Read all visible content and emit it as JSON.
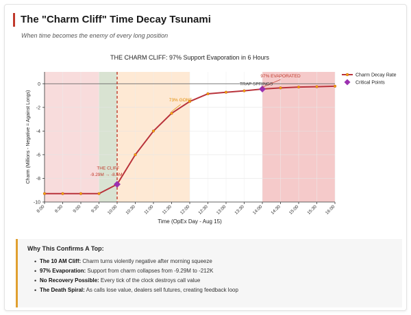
{
  "page": {
    "title": "The \"Charm Cliff\" Time Decay Tsunami",
    "subtitle": "When time becomes the enemy of every long position"
  },
  "chart_data": {
    "type": "line",
    "title": "THE CHARM CLIFF: 97% Support Evaporation in 6 Hours",
    "xlabel": "Time (OpEx Day - Aug 15)",
    "ylabel": "Charm (Millions - Negative = Against Longs)",
    "categories": [
      "8:00",
      "8:30",
      "9:00",
      "9:30",
      "10:00",
      "10:30",
      "11:00",
      "11:30",
      "12:00",
      "12:30",
      "13:00",
      "13:30",
      "14:00",
      "14:30",
      "15:00",
      "15:30",
      "16:00"
    ],
    "ylim": [
      -10,
      1
    ],
    "yticks": [
      0,
      -2,
      -4,
      -6,
      -8,
      -10
    ],
    "series": [
      {
        "name": "Charm Decay Rate",
        "color": "#b8323a",
        "marker_color": "#f0a800",
        "values": [
          -9.29,
          -9.29,
          -9.29,
          -9.29,
          -8.5,
          -6.0,
          -4.0,
          -2.5,
          -1.5,
          -0.85,
          -0.72,
          -0.6,
          -0.45,
          -0.35,
          -0.28,
          -0.25,
          -0.21
        ]
      }
    ],
    "critical_points": {
      "name": "Critical Points",
      "color": "#9b30b0",
      "points": [
        {
          "x": "10:00",
          "y": -8.5
        },
        {
          "x": "14:00",
          "y": -0.45
        }
      ]
    },
    "zones": [
      {
        "from": "8:00",
        "to": "10:00",
        "color": "#f6d0d0"
      },
      {
        "from": "9:30",
        "to": "10:00",
        "color": "#cfe6cf"
      },
      {
        "from": "10:00",
        "to": "12:00",
        "color": "#fde2c6"
      },
      {
        "from": "14:00",
        "to": "16:00",
        "color": "#f2b8b8"
      }
    ],
    "vline": {
      "x": "10:00",
      "color": "#c0392b"
    },
    "annotations": [
      {
        "text": "THE CLIFF",
        "x": "9:45",
        "y": -7.25,
        "color": "#c0392b"
      },
      {
        "text": "-9.29M → -8.5M",
        "x": "9:42",
        "y": -7.8,
        "color": "#c0392b"
      },
      {
        "text": "73% GONE",
        "x": "11:45",
        "y": -1.5,
        "color": "#e08a00"
      },
      {
        "text": "97% EVAPORATED",
        "x": "14:30",
        "y": 0.55,
        "color": "#c0392b"
      },
      {
        "text": "TRAP SPRINGS",
        "x": "13:50",
        "y": -0.12,
        "color": "#333333"
      }
    ],
    "legend_position": "top-right",
    "grid": true
  },
  "panel": {
    "title": "Why This Confirms A Top:",
    "items": [
      {
        "bold": "The 10 AM Cliff:",
        "text": " Charm turns violently negative after morning squeeze"
      },
      {
        "bold": "97% Evaporation:",
        "text": " Support from charm collapses from -9.29M to -212K"
      },
      {
        "bold": "No Recovery Possible:",
        "text": " Every tick of the clock destroys call value"
      },
      {
        "bold": "The Death Spiral:",
        "text": " As calls lose value, dealers sell futures, creating feedback loop"
      }
    ]
  }
}
